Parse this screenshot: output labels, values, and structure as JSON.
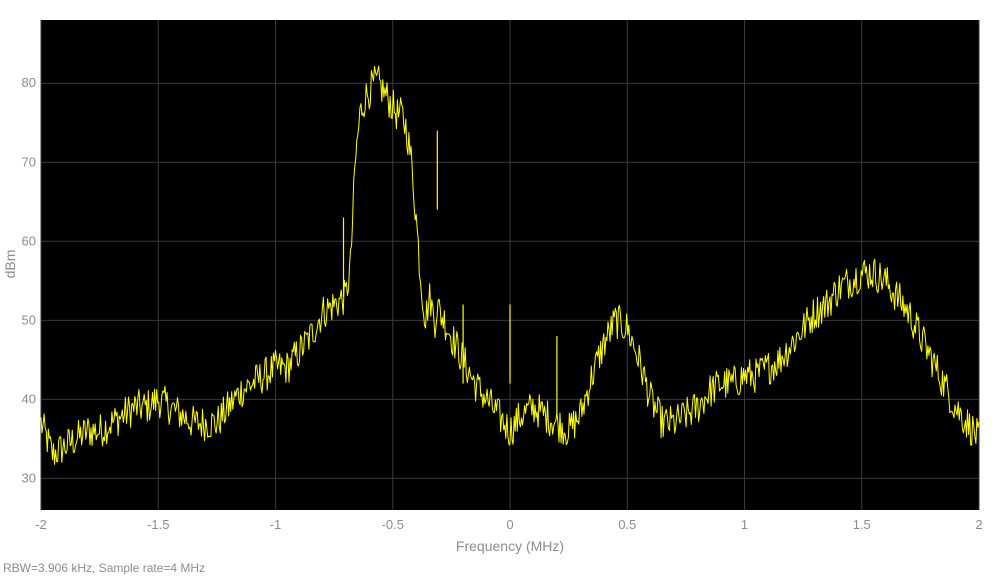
{
  "chart_data": {
    "type": "line",
    "title": "",
    "xlabel": "Frequency (MHz)",
    "ylabel": "dBm",
    "xlim": [
      -2,
      2
    ],
    "ylim": [
      26,
      88
    ],
    "xticks": [
      -2,
      -1.5,
      -1,
      -0.5,
      0,
      0.5,
      1,
      1.5,
      2
    ],
    "xtick_labels": [
      "-2",
      "-1.5",
      "-1",
      "-0.5",
      "0",
      "0.5",
      "1",
      "1.5",
      "2"
    ],
    "yticks": [
      30,
      40,
      50,
      60,
      70,
      80
    ],
    "ytick_labels": [
      "30",
      "40",
      "50",
      "60",
      "70",
      "80"
    ],
    "grid": true,
    "background_color": "#000000",
    "line_color": "#ffff00",
    "series": [
      {
        "x": [
          -2.0,
          -1.95,
          -1.9,
          -1.85,
          -1.8,
          -1.75,
          -1.7,
          -1.65,
          -1.6,
          -1.55,
          -1.5,
          -1.45,
          -1.4,
          -1.35,
          -1.3,
          -1.25,
          -1.2,
          -1.15,
          -1.1,
          -1.05,
          -1.0,
          -0.95,
          -0.9,
          -0.85,
          -0.8,
          -0.75,
          -0.7,
          -0.68,
          -0.66,
          -0.65,
          -0.64,
          -0.62,
          -0.6,
          -0.58,
          -0.56,
          -0.54,
          -0.52,
          -0.5,
          -0.48,
          -0.46,
          -0.44,
          -0.42,
          -0.4,
          -0.38,
          -0.36,
          -0.35,
          -0.34,
          -0.33,
          -0.32,
          -0.31,
          -0.3,
          -0.28,
          -0.25,
          -0.2,
          -0.15,
          -0.1,
          -0.05,
          0.0,
          0.05,
          0.1,
          0.15,
          0.2,
          0.25,
          0.3,
          0.35,
          0.4,
          0.45,
          0.5,
          0.55,
          0.6,
          0.65,
          0.7,
          0.75,
          0.8,
          0.85,
          0.9,
          0.95,
          1.0,
          1.05,
          1.1,
          1.15,
          1.2,
          1.25,
          1.3,
          1.35,
          1.4,
          1.45,
          1.5,
          1.55,
          1.6,
          1.65,
          1.7,
          1.75,
          1.8,
          1.85,
          1.9,
          1.95,
          2.0
        ],
        "y": [
          37,
          33,
          34,
          35,
          36,
          36,
          37,
          38,
          39,
          39,
          40,
          39,
          38,
          37,
          37,
          37,
          39,
          41,
          42,
          43,
          44,
          44,
          46,
          48,
          51,
          52,
          53,
          57,
          70,
          73,
          76,
          78,
          79,
          80,
          80,
          79,
          78,
          77,
          76,
          76,
          74,
          70,
          63,
          55,
          50,
          52,
          53,
          51,
          50,
          52,
          51,
          50,
          48,
          45,
          42,
          40,
          38,
          36,
          38,
          39,
          38,
          37,
          36,
          38,
          43,
          47,
          50,
          49,
          45,
          40,
          37,
          37,
          38,
          39,
          41,
          42,
          42,
          43,
          43,
          44,
          45,
          47,
          49,
          51,
          52,
          54,
          55,
          56,
          56,
          55,
          53,
          51,
          48,
          45,
          42,
          39,
          37,
          35
        ]
      }
    ],
    "spikes": [
      {
        "x": -0.71,
        "y": 63
      },
      {
        "x": -0.31,
        "y": 74
      },
      {
        "x": -0.2,
        "y": 52
      },
      {
        "x": 0.0,
        "y": 52
      },
      {
        "x": 0.2,
        "y": 48
      }
    ]
  },
  "footer": {
    "note": "RBW=3.906 kHz, Sample rate=4 MHz"
  }
}
